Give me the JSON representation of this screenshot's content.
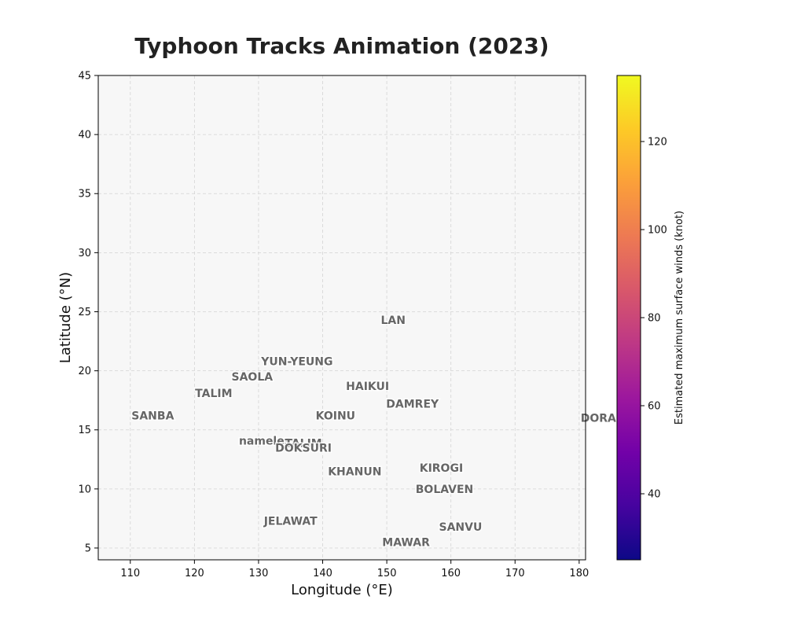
{
  "chart_data": {
    "type": "scatter",
    "title": "Typhoon Tracks Animation (2023)",
    "xlabel": "Longitude (°E)",
    "ylabel": "Latitude (°N)",
    "xlim": [
      105,
      181
    ],
    "ylim": [
      4,
      45
    ],
    "xticks": [
      110,
      120,
      130,
      140,
      150,
      160,
      170,
      180
    ],
    "yticks": [
      5,
      10,
      15,
      20,
      25,
      30,
      35,
      40,
      45
    ],
    "grid": true,
    "labels": [
      {
        "name": "LAN",
        "lon": 151,
        "lat": 24.3
      },
      {
        "name": "YUN-YEUNG",
        "lon": 136,
        "lat": 20.8
      },
      {
        "name": "SAOLA",
        "lon": 129,
        "lat": 19.5
      },
      {
        "name": "HAIKUI",
        "lon": 147,
        "lat": 18.7
      },
      {
        "name": "TALIM",
        "lon": 123,
        "lat": 18.1
      },
      {
        "name": "DAMREY",
        "lon": 154,
        "lat": 17.2
      },
      {
        "name": "SANBA",
        "lon": 113.5,
        "lat": 16.2
      },
      {
        "name": "KOINU",
        "lon": 142,
        "lat": 16.2
      },
      {
        "name": "DORA",
        "lon": 183,
        "lat": 16.0
      },
      {
        "name": "nameless",
        "lon": 131.5,
        "lat": 14.1
      },
      {
        "name": "TALIM",
        "lon": 137,
        "lat": 13.9
      },
      {
        "name": "DOKSURI",
        "lon": 137,
        "lat": 13.5
      },
      {
        "name": "KHANUN",
        "lon": 145,
        "lat": 11.5
      },
      {
        "name": "KIROGI",
        "lon": 158.5,
        "lat": 11.8
      },
      {
        "name": "BOLAVEN",
        "lon": 159,
        "lat": 10.0
      },
      {
        "name": "JELAWAT",
        "lon": 135,
        "lat": 7.3
      },
      {
        "name": "SANVU",
        "lon": 161.5,
        "lat": 6.8
      },
      {
        "name": "MAWAR",
        "lon": 153,
        "lat": 5.5
      }
    ],
    "colorbar": {
      "label": "Estimated maximum surface winds (knot)",
      "range": [
        25,
        135
      ],
      "ticks": [
        40,
        60,
        80,
        100,
        120
      ],
      "colormap": "plasma",
      "stops": [
        "#0d0887",
        "#46039f",
        "#7201a8",
        "#9c179e",
        "#bd3786",
        "#d8576b",
        "#ed7953",
        "#fb9f3a",
        "#fdca26",
        "#f0f921"
      ]
    }
  },
  "colors": {
    "plot_bg": "#f7f7f7",
    "grid": "#d4d4d4",
    "label_text": "#666666"
  }
}
